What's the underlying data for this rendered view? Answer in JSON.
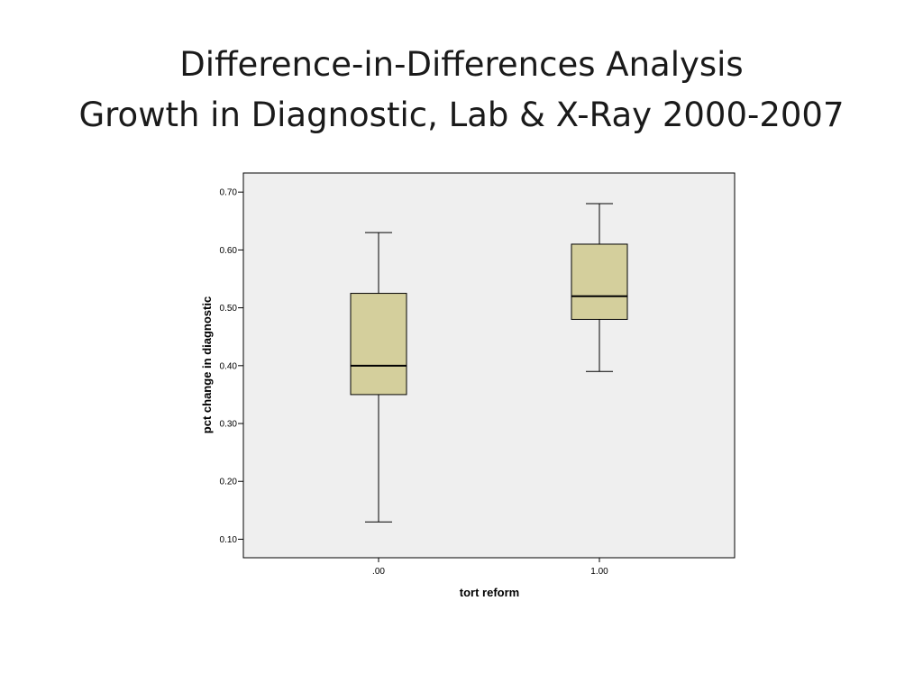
{
  "slide": {
    "title_line1": "Difference-in-Differences Analysis",
    "title_line2": "Growth in Diagnostic, Lab & X-Ray 2000-2007"
  },
  "chart_data": {
    "type": "boxplot",
    "xlabel": "tort reform",
    "ylabel": "pct change in diagnostic",
    "categories": [
      ".00",
      "1.00"
    ],
    "boxes": [
      {
        "category": ".00",
        "whisker_low": 0.13,
        "q1": 0.35,
        "median": 0.4,
        "q3": 0.525,
        "whisker_high": 0.63
      },
      {
        "category": "1.00",
        "whisker_low": 0.39,
        "q1": 0.48,
        "median": 0.52,
        "q3": 0.61,
        "whisker_high": 0.68
      }
    ],
    "yticks": [
      "0.10",
      "0.20",
      "0.30",
      "0.40",
      "0.50",
      "0.60",
      "0.70"
    ],
    "ytick_values": [
      0.1,
      0.2,
      0.3,
      0.4,
      0.5,
      0.6,
      0.7
    ],
    "ylim": [
      0.068,
      0.733
    ],
    "grid": false,
    "colors": {
      "plot_background": "#efefef",
      "box_fill": "#d4cf9c",
      "line": "#000000"
    }
  }
}
